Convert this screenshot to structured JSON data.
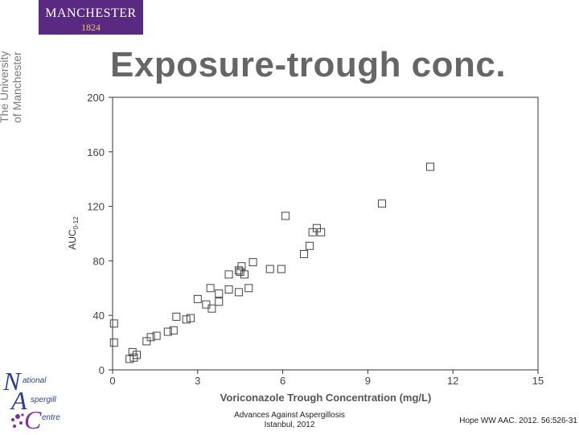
{
  "header": {
    "logo_name": "MANCHESTER",
    "logo_year": "1824",
    "university_line1": "The University",
    "university_line2": "of Manchester",
    "brand_color": "#5a2a82"
  },
  "title": "Exposure-trough conc.",
  "chart_data": {
    "type": "scatter",
    "title": "",
    "xlabel": "Voriconazole Trough Concentration (mg/L)",
    "ylabel_main": "AUC",
    "ylabel_sub": "0-12",
    "xlim": [
      0,
      15
    ],
    "ylim": [
      0,
      200
    ],
    "xticks": [
      0,
      3,
      6,
      9,
      12,
      15
    ],
    "yticks": [
      0,
      40,
      80,
      120,
      160,
      200
    ],
    "marker": "open-square",
    "points": [
      {
        "x": 0.05,
        "y": 34
      },
      {
        "x": 0.05,
        "y": 20
      },
      {
        "x": 0.6,
        "y": 8
      },
      {
        "x": 0.7,
        "y": 13
      },
      {
        "x": 0.75,
        "y": 9
      },
      {
        "x": 0.85,
        "y": 11
      },
      {
        "x": 1.2,
        "y": 21
      },
      {
        "x": 1.35,
        "y": 24
      },
      {
        "x": 1.55,
        "y": 25
      },
      {
        "x": 1.95,
        "y": 28
      },
      {
        "x": 2.15,
        "y": 29
      },
      {
        "x": 2.25,
        "y": 39
      },
      {
        "x": 2.6,
        "y": 37
      },
      {
        "x": 2.75,
        "y": 38
      },
      {
        "x": 3.0,
        "y": 52
      },
      {
        "x": 3.3,
        "y": 48
      },
      {
        "x": 3.45,
        "y": 60
      },
      {
        "x": 3.5,
        "y": 45
      },
      {
        "x": 3.75,
        "y": 50
      },
      {
        "x": 3.75,
        "y": 56
      },
      {
        "x": 4.1,
        "y": 59
      },
      {
        "x": 4.1,
        "y": 70
      },
      {
        "x": 4.45,
        "y": 57
      },
      {
        "x": 4.45,
        "y": 73
      },
      {
        "x": 4.5,
        "y": 72
      },
      {
        "x": 4.55,
        "y": 76
      },
      {
        "x": 4.65,
        "y": 70
      },
      {
        "x": 4.8,
        "y": 60
      },
      {
        "x": 4.95,
        "y": 79
      },
      {
        "x": 5.55,
        "y": 74
      },
      {
        "x": 5.95,
        "y": 74
      },
      {
        "x": 6.1,
        "y": 113
      },
      {
        "x": 6.75,
        "y": 85
      },
      {
        "x": 6.95,
        "y": 91
      },
      {
        "x": 7.05,
        "y": 101
      },
      {
        "x": 7.2,
        "y": 104
      },
      {
        "x": 7.35,
        "y": 101
      },
      {
        "x": 9.5,
        "y": 122
      },
      {
        "x": 11.2,
        "y": 149
      }
    ]
  },
  "footer": {
    "center_line1": "Advances Against Aspergillosis",
    "center_line2": "Istanbul, 2012",
    "citation": "Hope WW AAC. 2012. 56:526-31"
  },
  "nac_logo": {
    "letter_n": "N",
    "word_n": "ational",
    "letter_a": "A",
    "word_a": "spergill",
    "letter_c": "C",
    "word_c": "entre",
    "accent_color": "#7b2fa3"
  }
}
